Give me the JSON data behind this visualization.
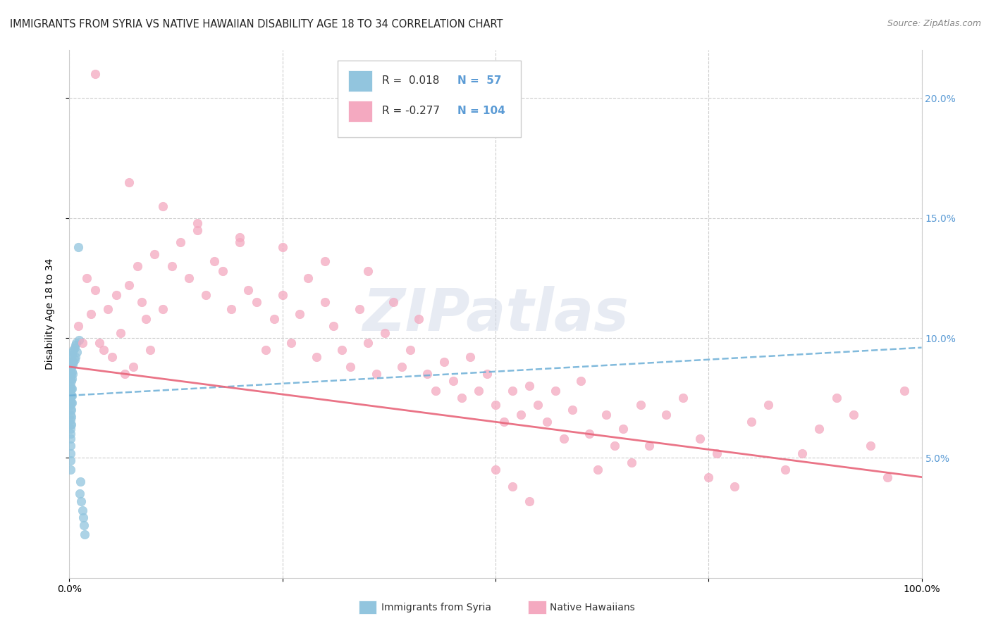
{
  "title": "IMMIGRANTS FROM SYRIA VS NATIVE HAWAIIAN DISABILITY AGE 18 TO 34 CORRELATION CHART",
  "source": "Source: ZipAtlas.com",
  "ylabel": "Disability Age 18 to 34",
  "xlim": [
    0.0,
    1.0
  ],
  "ylim": [
    0.0,
    0.22
  ],
  "xticklabels": [
    "0.0%",
    "",
    "",
    "",
    "100.0%"
  ],
  "xtick_positions": [
    0.0,
    0.25,
    0.5,
    0.75,
    1.0
  ],
  "ytick_positions": [
    0.05,
    0.1,
    0.15,
    0.2
  ],
  "yticklabels_right": [
    "5.0%",
    "10.0%",
    "15.0%",
    "20.0%"
  ],
  "color_syria": "#92c5de",
  "color_hawaii": "#f4a9c0",
  "color_syria_line": "#6baed6",
  "color_hawaii_line": "#e8657a",
  "background_color": "#ffffff",
  "grid_color": "#cccccc",
  "watermark_text": "ZIPatlas",
  "syria_line_x": [
    0.0,
    1.0
  ],
  "syria_line_y": [
    0.076,
    0.096
  ],
  "hawaii_line_x": [
    0.0,
    1.0
  ],
  "hawaii_line_y": [
    0.088,
    0.042
  ],
  "syria_x": [
    0.001,
    0.001,
    0.001,
    0.001,
    0.001,
    0.001,
    0.001,
    0.001,
    0.001,
    0.001,
    0.001,
    0.001,
    0.001,
    0.001,
    0.001,
    0.001,
    0.001,
    0.001,
    0.001,
    0.001,
    0.002,
    0.002,
    0.002,
    0.002,
    0.002,
    0.002,
    0.002,
    0.002,
    0.002,
    0.002,
    0.003,
    0.003,
    0.003,
    0.003,
    0.003,
    0.003,
    0.003,
    0.004,
    0.004,
    0.004,
    0.005,
    0.005,
    0.006,
    0.006,
    0.007,
    0.007,
    0.008,
    0.009,
    0.01,
    0.011,
    0.012,
    0.013,
    0.014,
    0.015,
    0.016,
    0.017,
    0.018
  ],
  "syria_y": [
    0.09,
    0.087,
    0.085,
    0.083,
    0.08,
    0.078,
    0.076,
    0.074,
    0.072,
    0.07,
    0.068,
    0.066,
    0.064,
    0.062,
    0.06,
    0.058,
    0.055,
    0.052,
    0.049,
    0.045,
    0.092,
    0.088,
    0.085,
    0.082,
    0.079,
    0.076,
    0.073,
    0.07,
    0.067,
    0.064,
    0.093,
    0.09,
    0.086,
    0.083,
    0.079,
    0.076,
    0.073,
    0.094,
    0.089,
    0.085,
    0.095,
    0.09,
    0.096,
    0.091,
    0.097,
    0.092,
    0.098,
    0.094,
    0.138,
    0.099,
    0.035,
    0.04,
    0.032,
    0.028,
    0.025,
    0.022,
    0.018
  ],
  "hawaii_x": [
    0.01,
    0.015,
    0.02,
    0.025,
    0.03,
    0.035,
    0.04,
    0.045,
    0.05,
    0.055,
    0.06,
    0.065,
    0.07,
    0.075,
    0.08,
    0.085,
    0.09,
    0.095,
    0.1,
    0.11,
    0.12,
    0.13,
    0.14,
    0.15,
    0.16,
    0.17,
    0.18,
    0.19,
    0.2,
    0.21,
    0.22,
    0.23,
    0.24,
    0.25,
    0.26,
    0.27,
    0.28,
    0.29,
    0.3,
    0.31,
    0.32,
    0.33,
    0.34,
    0.35,
    0.36,
    0.37,
    0.38,
    0.39,
    0.4,
    0.41,
    0.42,
    0.43,
    0.44,
    0.45,
    0.46,
    0.47,
    0.48,
    0.49,
    0.5,
    0.51,
    0.52,
    0.53,
    0.54,
    0.55,
    0.56,
    0.57,
    0.58,
    0.59,
    0.6,
    0.61,
    0.62,
    0.63,
    0.64,
    0.65,
    0.66,
    0.67,
    0.68,
    0.7,
    0.72,
    0.74,
    0.75,
    0.76,
    0.78,
    0.8,
    0.82,
    0.84,
    0.86,
    0.88,
    0.9,
    0.92,
    0.94,
    0.96,
    0.98,
    0.5,
    0.52,
    0.54,
    0.03,
    0.07,
    0.11,
    0.15,
    0.2,
    0.25,
    0.3,
    0.35
  ],
  "hawaii_y": [
    0.105,
    0.098,
    0.125,
    0.11,
    0.12,
    0.098,
    0.095,
    0.112,
    0.092,
    0.118,
    0.102,
    0.085,
    0.122,
    0.088,
    0.13,
    0.115,
    0.108,
    0.095,
    0.135,
    0.112,
    0.13,
    0.14,
    0.125,
    0.145,
    0.118,
    0.132,
    0.128,
    0.112,
    0.14,
    0.12,
    0.115,
    0.095,
    0.108,
    0.118,
    0.098,
    0.11,
    0.125,
    0.092,
    0.115,
    0.105,
    0.095,
    0.088,
    0.112,
    0.098,
    0.085,
    0.102,
    0.115,
    0.088,
    0.095,
    0.108,
    0.085,
    0.078,
    0.09,
    0.082,
    0.075,
    0.092,
    0.078,
    0.085,
    0.072,
    0.065,
    0.078,
    0.068,
    0.08,
    0.072,
    0.065,
    0.078,
    0.058,
    0.07,
    0.082,
    0.06,
    0.045,
    0.068,
    0.055,
    0.062,
    0.048,
    0.072,
    0.055,
    0.068,
    0.075,
    0.058,
    0.042,
    0.052,
    0.038,
    0.065,
    0.072,
    0.045,
    0.052,
    0.062,
    0.075,
    0.068,
    0.055,
    0.042,
    0.078,
    0.045,
    0.038,
    0.032,
    0.21,
    0.165,
    0.155,
    0.148,
    0.142,
    0.138,
    0.132,
    0.128
  ],
  "title_fontsize": 10.5,
  "tick_fontsize": 10,
  "right_tick_color": "#5b9bd5",
  "legend_r_color": "#333333",
  "legend_n_color": "#5b9bd5"
}
